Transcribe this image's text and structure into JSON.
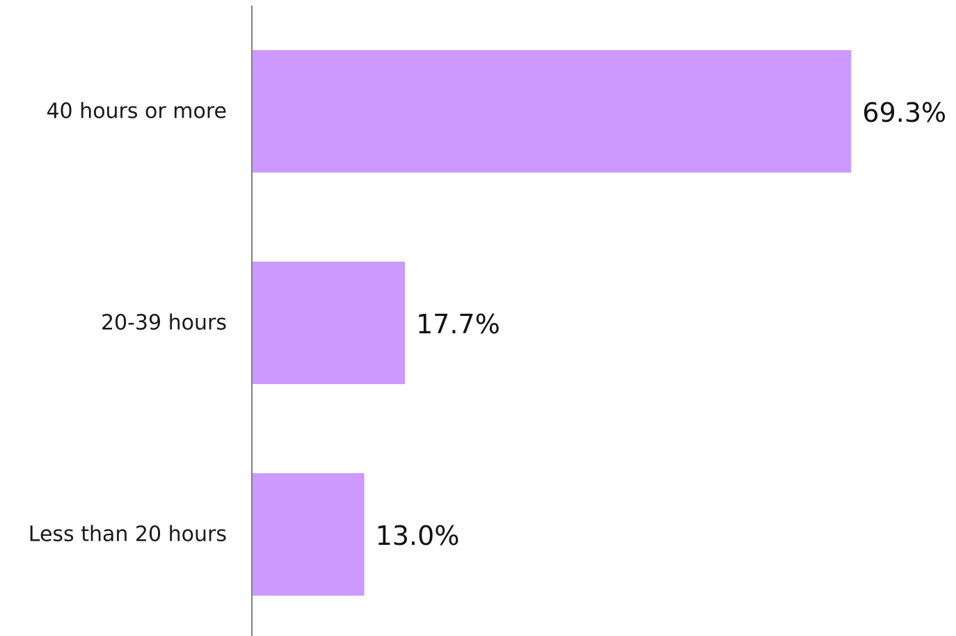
{
  "chart_data": {
    "type": "bar",
    "orientation": "horizontal",
    "categories": [
      "40 hours or more",
      "20-39 hours",
      "Less than 20 hours"
    ],
    "values": [
      69.3,
      17.7,
      13.0
    ],
    "value_labels": [
      "69.3%",
      "17.7%",
      "13.0%"
    ],
    "unit": "%",
    "xlim": [
      0,
      100
    ],
    "grid": false,
    "legend": "none",
    "title": "",
    "xlabel": "",
    "ylabel": "",
    "colors": {
      "bar": "#cc99ff",
      "axis": "#7f7f7f",
      "text": "#111111"
    }
  }
}
